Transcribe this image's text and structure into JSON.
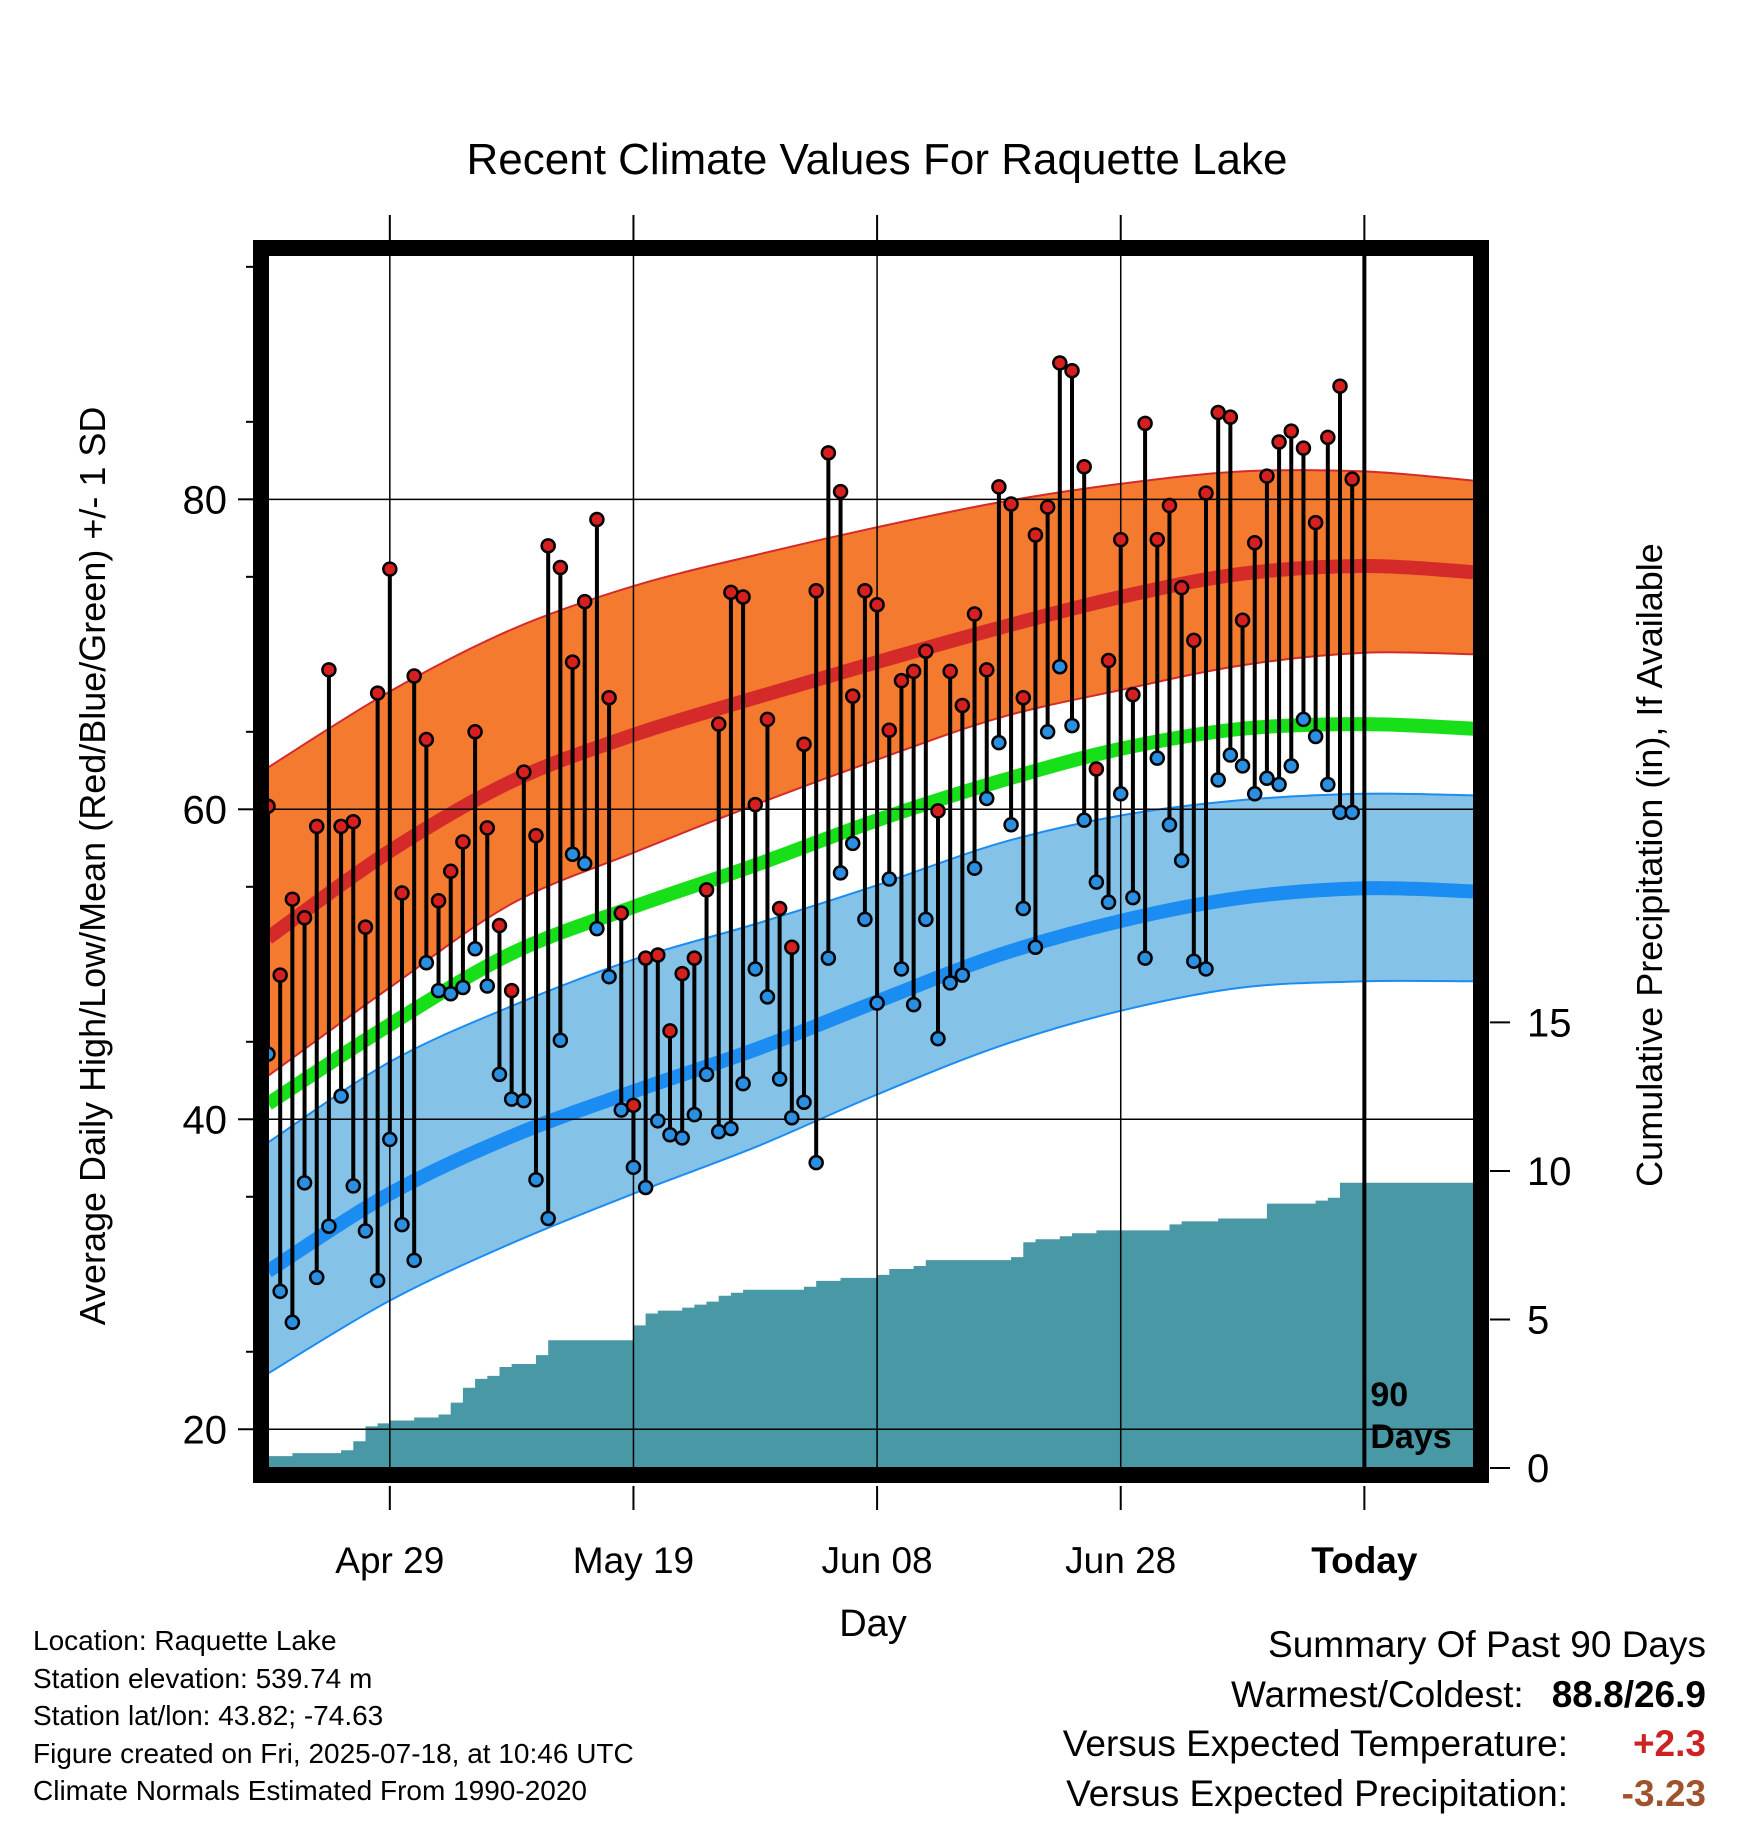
{
  "chart_data": {
    "type": "line",
    "title": "Recent Climate Values For Raquette Lake",
    "xlabel": "Day",
    "ylabel": "Average Daily High/Low/Mean (Red/Blue/Green) +/- 1 SD",
    "y2label": "Cumulative Precipitation (in), If Available",
    "ylim": [
      17.5,
      95.7
    ],
    "y2lim": [
      0,
      40.8
    ],
    "yticks": [
      20,
      40,
      60,
      80
    ],
    "y2ticks": [
      0,
      5,
      10,
      15
    ],
    "x_range": [
      "2025-04-19",
      "2025-07-27"
    ],
    "xticks": [
      {
        "date": "2025-04-29",
        "label": "Apr 29"
      },
      {
        "date": "2025-05-19",
        "label": "May 19"
      },
      {
        "date": "2025-06-08",
        "label": "Jun 08"
      },
      {
        "date": "2025-06-28",
        "label": "Jun 28"
      },
      {
        "date": "2025-07-18",
        "label": "Today"
      }
    ],
    "today": "2025-07-18",
    "today_label": [
      "90",
      "Days"
    ],
    "grid": true,
    "colors": {
      "high_band": "#f47a2f",
      "high_line": "#d42a2a",
      "low_band": "#84c2e7",
      "low_line": "#1a8cf2",
      "mean_line": "#18e018",
      "precip": "#4998a5",
      "high_dot": "#d62020",
      "low_dot": "#2a8fe0"
    },
    "normal_curve_x": [
      "2025-04-19",
      "2025-04-29",
      "2025-05-09",
      "2025-05-19",
      "2025-05-29",
      "2025-06-08",
      "2025-06-18",
      "2025-06-28",
      "2025-07-08",
      "2025-07-18",
      "2025-07-27"
    ],
    "normal_high_upper": [
      62.7,
      67.6,
      71.6,
      74.4,
      76.4,
      78.2,
      79.8,
      81.0,
      81.8,
      81.8,
      81.2
    ],
    "normal_high": [
      51.7,
      57.3,
      61.8,
      64.8,
      67.2,
      69.5,
      71.7,
      73.7,
      75.2,
      75.7,
      75.3
    ],
    "normal_high_lower": [
      42.8,
      48.5,
      53.9,
      57.2,
      60.3,
      63.2,
      65.9,
      67.7,
      69.3,
      70.1,
      70.0
    ],
    "normal_mean": [
      41.0,
      46.1,
      50.7,
      53.7,
      56.4,
      59.3,
      61.8,
      63.9,
      65.2,
      65.5,
      65.2
    ],
    "normal_low_upper": [
      38.5,
      43.7,
      47.3,
      50.3,
      52.6,
      55.1,
      57.8,
      59.6,
      60.6,
      61.0,
      60.9
    ],
    "normal_low": [
      30.2,
      35.2,
      38.9,
      41.8,
      44.5,
      47.6,
      50.6,
      52.8,
      54.3,
      54.9,
      54.7
    ],
    "normal_low_lower": [
      23.6,
      28.3,
      32.0,
      35.2,
      38.2,
      41.6,
      44.7,
      47.0,
      48.5,
      48.9,
      48.9
    ],
    "days": [
      "2025-04-19",
      "2025-04-20",
      "2025-04-21",
      "2025-04-22",
      "2025-04-23",
      "2025-04-24",
      "2025-04-25",
      "2025-04-26",
      "2025-04-27",
      "2025-04-28",
      "2025-04-29",
      "2025-04-30",
      "2025-05-01",
      "2025-05-02",
      "2025-05-03",
      "2025-05-04",
      "2025-05-05",
      "2025-05-06",
      "2025-05-07",
      "2025-05-08",
      "2025-05-09",
      "2025-05-10",
      "2025-05-11",
      "2025-05-12",
      "2025-05-13",
      "2025-05-14",
      "2025-05-15",
      "2025-05-16",
      "2025-05-17",
      "2025-05-18",
      "2025-05-19",
      "2025-05-20",
      "2025-05-21",
      "2025-05-22",
      "2025-05-23",
      "2025-05-24",
      "2025-05-25",
      "2025-05-26",
      "2025-05-27",
      "2025-05-28",
      "2025-05-29",
      "2025-05-30",
      "2025-05-31",
      "2025-06-01",
      "2025-06-02",
      "2025-06-03",
      "2025-06-04",
      "2025-06-05",
      "2025-06-06",
      "2025-06-07",
      "2025-06-08",
      "2025-06-09",
      "2025-06-10",
      "2025-06-11",
      "2025-06-12",
      "2025-06-13",
      "2025-06-14",
      "2025-06-15",
      "2025-06-16",
      "2025-06-17",
      "2025-06-18",
      "2025-06-19",
      "2025-06-20",
      "2025-06-21",
      "2025-06-22",
      "2025-06-23",
      "2025-06-24",
      "2025-06-25",
      "2025-06-26",
      "2025-06-27",
      "2025-06-28",
      "2025-06-29",
      "2025-06-30",
      "2025-07-01",
      "2025-07-02",
      "2025-07-03",
      "2025-07-04",
      "2025-07-05",
      "2025-07-06",
      "2025-07-07",
      "2025-07-08",
      "2025-07-09",
      "2025-07-10",
      "2025-07-11",
      "2025-07-12",
      "2025-07-13",
      "2025-07-14",
      "2025-07-15",
      "2025-07-16",
      "2025-07-17"
    ],
    "high": [
      60.2,
      49.3,
      54.2,
      53.0,
      58.9,
      69.0,
      58.9,
      59.2,
      52.4,
      67.5,
      75.5,
      54.6,
      68.6,
      64.5,
      54.1,
      56.0,
      57.9,
      65.0,
      58.8,
      52.5,
      48.3,
      62.4,
      58.3,
      77.0,
      75.6,
      69.5,
      73.4,
      78.7,
      67.2,
      53.3,
      40.9,
      50.4,
      50.6,
      45.7,
      49.4,
      50.4,
      54.8,
      65.5,
      74.0,
      73.7,
      60.3,
      65.8,
      53.6,
      51.1,
      64.2,
      74.1,
      83.0,
      80.5,
      67.3,
      74.1,
      73.2,
      65.1,
      68.3,
      68.9,
      70.2,
      59.9,
      68.9,
      66.7,
      72.6,
      69.0,
      80.8,
      79.7,
      67.2,
      77.7,
      79.5,
      88.8,
      88.3,
      82.1,
      62.6,
      69.6,
      77.4,
      67.4,
      84.9,
      77.4,
      79.6,
      74.3,
      70.9,
      80.4,
      85.6,
      85.3,
      72.2,
      77.2,
      81.5,
      83.7,
      84.4,
      83.3,
      78.5,
      84.0,
      87.3,
      81.3
    ],
    "low": [
      44.2,
      28.9,
      26.9,
      35.9,
      29.8,
      33.1,
      41.5,
      35.7,
      32.8,
      29.6,
      38.7,
      33.2,
      30.9,
      50.1,
      48.3,
      48.1,
      48.5,
      51.0,
      48.6,
      42.9,
      41.3,
      41.2,
      36.1,
      33.6,
      45.1,
      57.1,
      56.5,
      52.3,
      49.2,
      40.6,
      36.9,
      35.6,
      39.9,
      39.0,
      38.8,
      40.3,
      42.9,
      39.2,
      39.4,
      42.3,
      49.7,
      47.9,
      42.6,
      40.1,
      41.1,
      37.2,
      50.4,
      55.9,
      57.8,
      52.9,
      47.5,
      55.5,
      49.7,
      47.4,
      52.9,
      45.2,
      48.8,
      49.3,
      56.2,
      60.7,
      64.3,
      59.0,
      53.6,
      51.1,
      65.0,
      69.2,
      65.4,
      59.3,
      55.3,
      54.0,
      61.0,
      54.3,
      50.4,
      63.3,
      59.0,
      56.7,
      50.2,
      49.7,
      61.9,
      63.5,
      62.8,
      61.0,
      62.0,
      61.6,
      62.8,
      65.8,
      64.7,
      61.6,
      59.8,
      59.8
    ],
    "precip_cumulative": [
      0.4,
      0.4,
      0.5,
      0.5,
      0.5,
      0.5,
      0.6,
      0.9,
      1.4,
      1.5,
      1.6,
      1.6,
      1.7,
      1.7,
      1.8,
      2.2,
      2.7,
      3.0,
      3.1,
      3.4,
      3.5,
      3.5,
      3.8,
      4.3,
      4.3,
      4.3,
      4.3,
      4.3,
      4.3,
      4.3,
      4.8,
      5.2,
      5.3,
      5.3,
      5.4,
      5.5,
      5.6,
      5.8,
      5.9,
      6.0,
      6.0,
      6.0,
      6.0,
      6.0,
      6.1,
      6.3,
      6.3,
      6.4,
      6.4,
      6.4,
      6.5,
      6.7,
      6.7,
      6.8,
      7.0,
      7.0,
      7.0,
      7.0,
      7.0,
      7.0,
      7.0,
      7.1,
      7.6,
      7.7,
      7.7,
      7.8,
      7.9,
      7.9,
      8.0,
      8.0,
      8.0,
      8.0,
      8.0,
      8.0,
      8.2,
      8.3,
      8.3,
      8.3,
      8.4,
      8.4,
      8.4,
      8.4,
      8.9,
      8.9,
      8.9,
      8.9,
      9.0,
      9.1,
      9.6,
      9.6
    ]
  },
  "info": {
    "location": "Location: Raquette Lake",
    "elevation": "Station elevation: 539.74 m",
    "latlon": "Station lat/lon: 43.82; -74.63",
    "created": "Figure created on Fri, 2025-07-18, at 10:46 UTC",
    "normals": "Climate Normals Estimated From 1990-2020"
  },
  "summary": {
    "title": "Summary Of Past 90 Days",
    "warmest_coldest_label": "Warmest/Coldest:",
    "warmest_coldest_value": "88.8/26.9",
    "temp_label": "Versus Expected Temperature:",
    "temp_value": "+2.3",
    "temp_color": "#cc2222",
    "precip_label": "Versus Expected Precipitation:",
    "precip_value": "-3.23",
    "precip_color": "#a0522d"
  }
}
